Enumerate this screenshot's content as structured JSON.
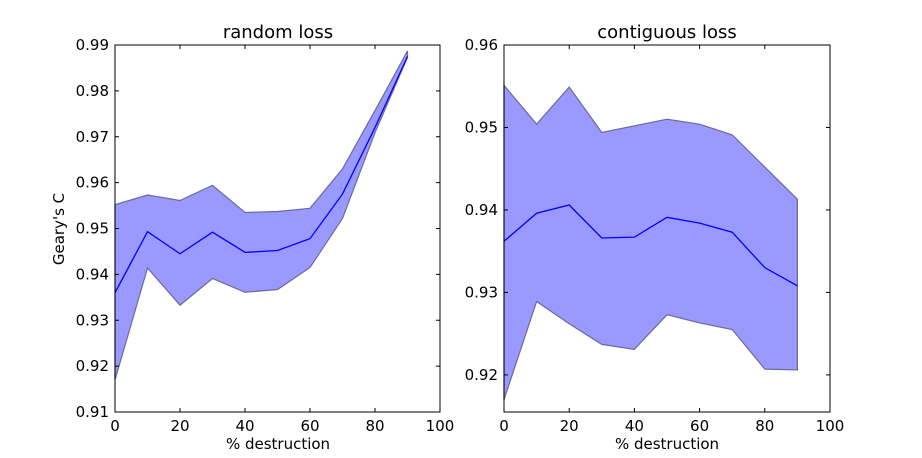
{
  "chart_data": [
    {
      "type": "area",
      "title": "random loss",
      "xlabel": "% destruction",
      "ylabel": "Geary's C",
      "xlim": [
        0,
        100
      ],
      "ylim": [
        0.91,
        0.99
      ],
      "xticks": [
        0,
        20,
        40,
        60,
        80,
        100
      ],
      "yticks": [
        0.91,
        0.92,
        0.93,
        0.94,
        0.95,
        0.96,
        0.97,
        0.98,
        0.99
      ],
      "x": [
        0,
        10,
        20,
        30,
        40,
        50,
        60,
        70,
        80,
        90
      ],
      "mean": [
        0.936,
        0.9493,
        0.9445,
        0.9492,
        0.9448,
        0.9452,
        0.9478,
        0.9575,
        0.972,
        0.9875
      ],
      "upper": [
        0.9552,
        0.9573,
        0.9561,
        0.9594,
        0.9535,
        0.9537,
        0.9544,
        0.963,
        0.9757,
        0.9887
      ],
      "lower": [
        0.917,
        0.9414,
        0.9333,
        0.9391,
        0.9361,
        0.9367,
        0.9415,
        0.9522,
        0.9709,
        0.9873
      ],
      "grid": false,
      "colors": {
        "line": "#0000ff",
        "band": "#9999ff",
        "band_edge": "#6a6a9a"
      }
    },
    {
      "type": "area",
      "title": "contiguous loss",
      "xlabel": "% destruction",
      "ylabel": "",
      "xlim": [
        0,
        100
      ],
      "ylim": [
        0.9155,
        0.96
      ],
      "xticks": [
        0,
        20,
        40,
        60,
        80,
        100
      ],
      "yticks": [
        0.92,
        0.93,
        0.94,
        0.95,
        0.96
      ],
      "x": [
        0,
        10,
        20,
        30,
        40,
        50,
        60,
        70,
        80,
        90
      ],
      "mean": [
        0.9362,
        0.9396,
        0.9406,
        0.9366,
        0.9367,
        0.9391,
        0.9384,
        0.9373,
        0.933,
        0.9308
      ],
      "upper": [
        0.9551,
        0.9504,
        0.9549,
        0.9494,
        0.9502,
        0.951,
        0.9504,
        0.9491,
        0.9452,
        0.9413
      ],
      "lower": [
        0.917,
        0.9289,
        0.9262,
        0.9237,
        0.9231,
        0.9273,
        0.9263,
        0.9255,
        0.9207,
        0.9206
      ],
      "grid": false,
      "colors": {
        "line": "#0000ff",
        "band": "#9999ff",
        "band_edge": "#6a6a9a"
      }
    }
  ]
}
